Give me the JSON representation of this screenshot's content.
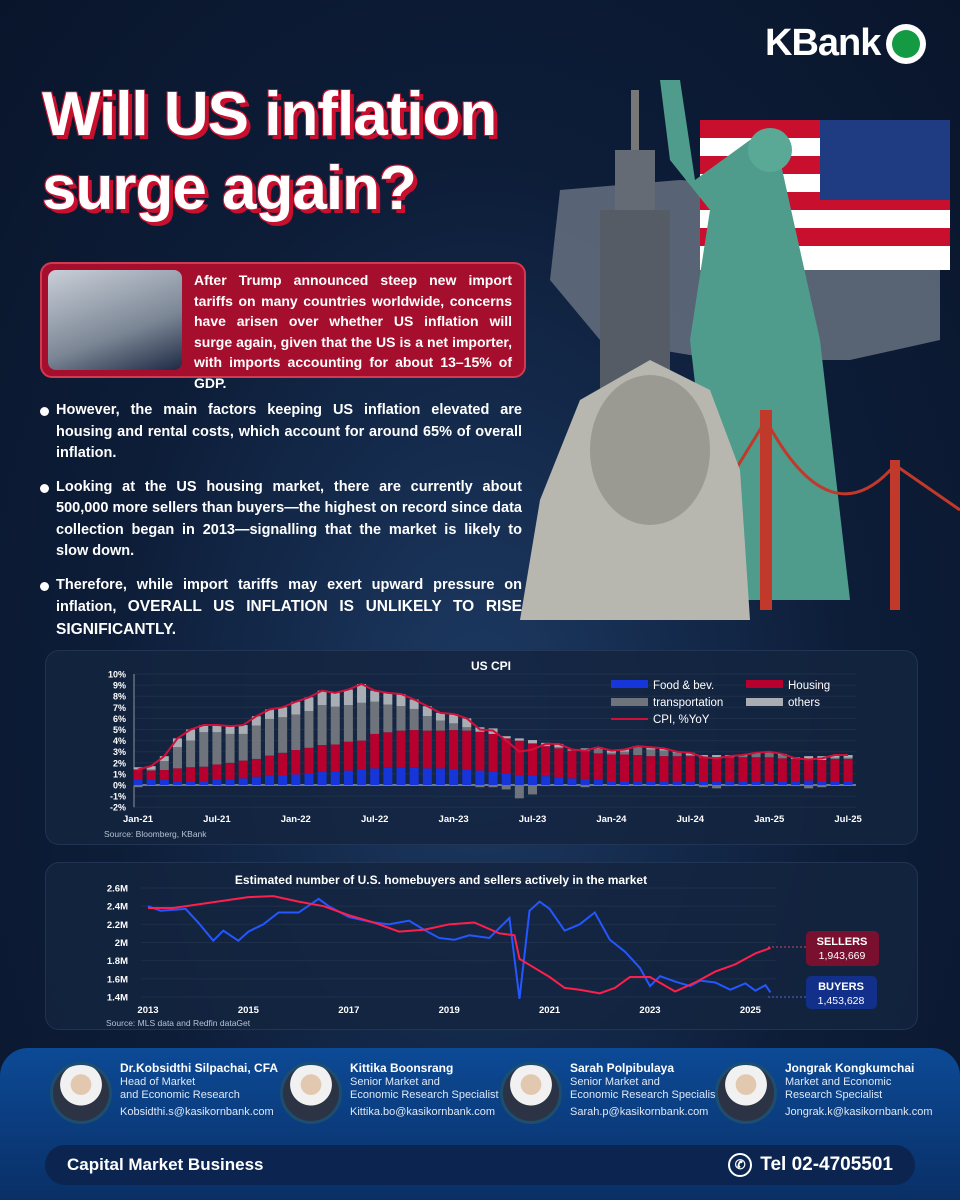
{
  "brand": {
    "logo_text": "KBank"
  },
  "title": {
    "line1": "Will US inflation",
    "line2": "surge again?"
  },
  "intro": "After Trump announced steep new import tariffs on many countries worldwide, concerns have arisen over whether US inflation will surge again, given that the US is a net importer, with imports accounting for about 13–15% of GDP.",
  "bullets": [
    "However, the main factors keeping US inflation elevated are housing and rental costs, which account for around 65% of overall inflation.",
    "Looking at the US housing market, there are currently about 500,000 more sellers than buyers—the highest on record since data collection began in 2013—signalling that the market is likely to slow down.",
    {
      "lead": "Therefore, while import tariffs may exert upward pressure on inflation, ",
      "emphasis": "OVERALL US INFLATION IS UNLIKELY TO RISE SIGNIFICANTLY."
    }
  ],
  "colors": {
    "food": "#1636d9",
    "housing": "#b8002f",
    "transportation": "#6f747c",
    "others": "#a9adb4",
    "cpi": "#d0103a",
    "sellers": "#ff1f4b",
    "buyers": "#2457ff"
  },
  "chart_data": [
    {
      "type": "bar",
      "title": "US CPI",
      "source": "Source: Bloomberg, KBank",
      "ylim": [
        -2,
        10
      ],
      "yticks": [
        "-2%",
        "-1%",
        "0%",
        "1%",
        "2%",
        "3%",
        "4%",
        "5%",
        "6%",
        "7%",
        "8%",
        "9%",
        "10%"
      ],
      "xtick_labels": [
        "Jan-21",
        "Jul-21",
        "Jan-22",
        "Jul-22",
        "Jan-23",
        "Jul-23",
        "Jan-24",
        "Jul-24",
        "Jan-25",
        "Jul-25"
      ],
      "legend": {
        "placement": "top-right",
        "food": "Food & bev.",
        "housing": "Housing",
        "transportation": "transportation",
        "others": "others",
        "cpi": "CPI, %YoY"
      },
      "start_month": "Jan-21",
      "food": [
        0.5,
        0.45,
        0.45,
        0.3,
        0.3,
        0.3,
        0.45,
        0.5,
        0.6,
        0.75,
        0.85,
        0.9,
        0.95,
        1.05,
        1.2,
        1.25,
        1.3,
        1.4,
        1.5,
        1.55,
        1.6,
        1.55,
        1.5,
        1.5,
        1.45,
        1.4,
        1.3,
        1.2,
        1.0,
        0.9,
        0.85,
        0.8,
        0.7,
        0.6,
        0.55,
        0.45,
        0.35,
        0.35,
        0.3,
        0.3,
        0.3,
        0.3,
        0.3,
        0.3,
        0.3,
        0.3,
        0.3,
        0.3,
        0.3,
        0.3,
        0.35,
        0.4,
        0.35,
        0.35,
        0.35
      ],
      "housing": [
        0.9,
        0.85,
        0.9,
        1.2,
        1.3,
        1.35,
        1.4,
        1.5,
        1.6,
        1.6,
        1.8,
        2.0,
        2.2,
        2.3,
        2.4,
        2.4,
        2.6,
        2.6,
        3.1,
        3.2,
        3.3,
        3.4,
        3.4,
        3.4,
        3.5,
        3.5,
        3.5,
        3.4,
        3.2,
        3.1,
        2.9,
        2.7,
        2.6,
        2.5,
        2.5,
        2.4,
        2.4,
        2.4,
        2.4,
        2.3,
        2.3,
        2.3,
        2.3,
        2.2,
        2.2,
        2.2,
        2.2,
        2.2,
        2.2,
        2.1,
        2.0,
        1.9,
        1.9,
        2.0,
        2.0
      ],
      "transportation": [
        -0.2,
        0.1,
        0.8,
        1.9,
        2.4,
        3.1,
        2.9,
        2.6,
        2.4,
        3.0,
        3.3,
        3.2,
        3.2,
        3.3,
        3.6,
        3.4,
        3.3,
        3.4,
        2.9,
        2.5,
        2.2,
        1.9,
        1.3,
        0.9,
        0.6,
        0.3,
        -0.2,
        -0.2,
        -0.4,
        -1.2,
        -0.85,
        -0.1,
        0.1,
        0.0,
        -0.2,
        0.4,
        0.15,
        0.25,
        0.7,
        0.6,
        0.5,
        0.3,
        0.1,
        -0.2,
        -0.3,
        -0.1,
        0.1,
        0.3,
        0.4,
        0.3,
        -0.1,
        -0.3,
        -0.2,
        0.1,
        0.1
      ],
      "others": [
        0.2,
        0.3,
        0.45,
        0.8,
        1.0,
        0.65,
        0.65,
        0.7,
        0.8,
        0.85,
        0.85,
        0.9,
        1.15,
        1.25,
        1.3,
        1.25,
        1.4,
        1.7,
        1.0,
        1.05,
        1.1,
        0.85,
        0.9,
        0.7,
        0.85,
        0.8,
        0.4,
        0.5,
        0.2,
        0.2,
        0.3,
        0.3,
        0.3,
        0.1,
        0.25,
        0.15,
        0.2,
        0.2,
        0.1,
        0.2,
        0.2,
        0.1,
        0.2,
        0.2,
        0.2,
        0.2,
        0.1,
        0.1,
        0.1,
        0.1,
        0.15,
        0.3,
        0.35,
        0.25,
        0.25
      ],
      "cpi": [
        1.4,
        1.7,
        2.6,
        4.2,
        5.0,
        5.4,
        5.4,
        5.3,
        5.4,
        6.2,
        6.8,
        7.0,
        7.5,
        7.9,
        8.5,
        8.3,
        8.6,
        9.1,
        8.5,
        8.3,
        8.2,
        7.7,
        7.1,
        6.5,
        6.4,
        6.0,
        5.0,
        4.9,
        4.0,
        3.0,
        3.2,
        3.7,
        3.7,
        3.2,
        3.1,
        3.4,
        3.1,
        3.2,
        3.5,
        3.4,
        3.3,
        3.0,
        2.9,
        2.5,
        2.4,
        2.6,
        2.7,
        2.9,
        3.0,
        2.8,
        2.4,
        2.3,
        2.4,
        2.7,
        2.7
      ]
    },
    {
      "type": "line",
      "title": "Estimated number of U.S. homebuyers and sellers actively in the market",
      "source": "Source: MLS data and Redfin dataGet",
      "ylim": [
        1.4,
        2.6
      ],
      "yticks": [
        "1.4M",
        "1.6M",
        "1.8M",
        "2M",
        "2.2M",
        "2.4M",
        "2.6M"
      ],
      "xticks": [
        "2013",
        "2015",
        "2017",
        "2019",
        "2021",
        "2023",
        "2025"
      ],
      "series": [
        {
          "name": "SELLERS",
          "latest": "1,943,669",
          "points": [
            [
              2013,
              2.38
            ],
            [
              2013.5,
              2.38
            ],
            [
              2014,
              2.42
            ],
            [
              2014.5,
              2.46
            ],
            [
              2015,
              2.5
            ],
            [
              2015.5,
              2.51
            ],
            [
              2016,
              2.45
            ],
            [
              2016.5,
              2.4
            ],
            [
              2017,
              2.3
            ],
            [
              2017.5,
              2.22
            ],
            [
              2018,
              2.12
            ],
            [
              2018.5,
              2.14
            ],
            [
              2019,
              2.2
            ],
            [
              2019.5,
              2.22
            ],
            [
              2020,
              2.1
            ],
            [
              2020.3,
              2.08
            ],
            [
              2020.4,
              1.82
            ],
            [
              2020.7,
              1.72
            ],
            [
              2021,
              1.62
            ],
            [
              2021.3,
              1.5
            ],
            [
              2021.6,
              1.48
            ],
            [
              2022,
              1.44
            ],
            [
              2022.3,
              1.5
            ],
            [
              2022.6,
              1.62
            ],
            [
              2023,
              1.62
            ],
            [
              2023.5,
              1.46
            ],
            [
              2023.9,
              1.56
            ],
            [
              2024.3,
              1.68
            ],
            [
              2024.7,
              1.76
            ],
            [
              2025.1,
              1.88
            ],
            [
              2025.4,
              1.94
            ]
          ]
        },
        {
          "name": "BUYERS",
          "latest": "1,453,628",
          "points": [
            [
              2013,
              2.4
            ],
            [
              2013.25,
              2.35
            ],
            [
              2013.75,
              2.37
            ],
            [
              2014,
              2.22
            ],
            [
              2014.3,
              2.02
            ],
            [
              2014.5,
              2.13
            ],
            [
              2014.8,
              2.02
            ],
            [
              2015,
              2.12
            ],
            [
              2015.3,
              2.2
            ],
            [
              2015.6,
              2.33
            ],
            [
              2016,
              2.33
            ],
            [
              2016.4,
              2.48
            ],
            [
              2016.6,
              2.4
            ],
            [
              2017,
              2.28
            ],
            [
              2017.5,
              2.22
            ],
            [
              2017.8,
              2.2
            ],
            [
              2018.2,
              2.24
            ],
            [
              2018.5,
              2.14
            ],
            [
              2018.8,
              2.05
            ],
            [
              2019.1,
              2.03
            ],
            [
              2019.4,
              2.08
            ],
            [
              2019.8,
              2.05
            ],
            [
              2020.2,
              2.27
            ],
            [
              2020.4,
              1.38
            ],
            [
              2020.6,
              2.35
            ],
            [
              2020.8,
              2.45
            ],
            [
              2021,
              2.37
            ],
            [
              2021.3,
              2.13
            ],
            [
              2021.6,
              2.2
            ],
            [
              2021.9,
              2.33
            ],
            [
              2022.2,
              2.03
            ],
            [
              2022.5,
              1.9
            ],
            [
              2022.8,
              1.72
            ],
            [
              2023,
              1.52
            ],
            [
              2023.2,
              1.63
            ],
            [
              2023.5,
              1.57
            ],
            [
              2023.8,
              1.52
            ],
            [
              2024,
              1.58
            ],
            [
              2024.3,
              1.56
            ],
            [
              2024.6,
              1.48
            ],
            [
              2024.9,
              1.55
            ],
            [
              2025.1,
              1.47
            ],
            [
              2025.3,
              1.53
            ],
            [
              2025.4,
              1.45
            ]
          ]
        }
      ]
    }
  ],
  "contacts": [
    {
      "name": "Dr.Kobsidthi Silpachai, CFA",
      "role1": "Head of Market",
      "role2": "and Economic Research",
      "email": "Kobsidthi.s@kasikornbank.com"
    },
    {
      "name": "Kittika Boonsrang",
      "role1": "Senior Market and",
      "role2": "Economic Research Specialist",
      "email": "Kittika.bo@kasikornbank.com"
    },
    {
      "name": "Sarah Polpibulaya",
      "role1": "Senior Market and",
      "role2": "Economic Research Specialist",
      "email": "Sarah.p@kasikornbank.com"
    },
    {
      "name": "Jongrak Kongkumchai",
      "role1": "Market and Economic",
      "role2": "Research Specialist",
      "email": "Jongrak.k@kasikornbank.com"
    }
  ],
  "footer": {
    "business": "Capital Market Business",
    "tel": "Tel 02-4705501"
  }
}
